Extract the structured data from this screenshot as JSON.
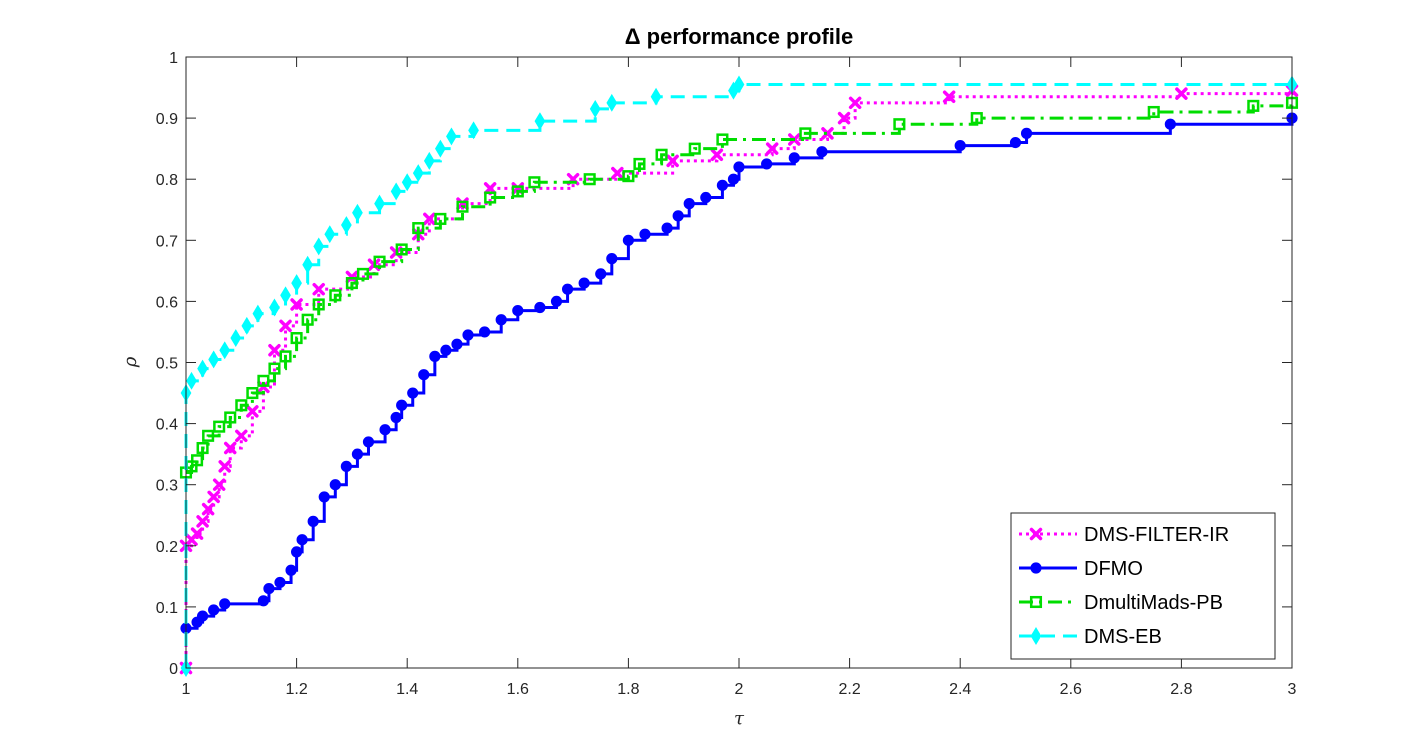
{
  "chart_data": {
    "type": "line",
    "title": "Δ performance profile",
    "xlabel": "τ",
    "ylabel": "ρ",
    "xlim": [
      1,
      3
    ],
    "ylim": [
      0,
      1
    ],
    "grid": false,
    "legend_position": "bottom-right",
    "x_ticks": [
      1,
      1.2,
      1.4,
      1.6,
      1.8,
      2,
      2.2,
      2.4,
      2.6,
      2.8,
      3
    ],
    "x_tick_labels": [
      "1",
      "1.2",
      "1.4",
      "1.6",
      "1.8",
      "2",
      "2.2",
      "2.4",
      "2.6",
      "2.8",
      "3"
    ],
    "y_ticks": [
      0,
      0.1,
      0.2,
      0.3,
      0.4,
      0.5,
      0.6,
      0.7,
      0.8,
      0.9,
      1
    ],
    "y_tick_labels": [
      "0",
      "0.1",
      "0.2",
      "0.3",
      "0.4",
      "0.5",
      "0.6",
      "0.7",
      "0.8",
      "0.9",
      "1"
    ],
    "series": [
      {
        "name": "DMS-FILTER-IR",
        "color": "#ff00ff",
        "dash": "dotted",
        "marker": "x",
        "points": [
          [
            1,
            0
          ],
          [
            1,
            0.2
          ],
          [
            1.01,
            0.21
          ],
          [
            1.02,
            0.22
          ],
          [
            1.03,
            0.24
          ],
          [
            1.04,
            0.26
          ],
          [
            1.05,
            0.28
          ],
          [
            1.06,
            0.3
          ],
          [
            1.07,
            0.33
          ],
          [
            1.08,
            0.36
          ],
          [
            1.1,
            0.38
          ],
          [
            1.12,
            0.42
          ],
          [
            1.14,
            0.46
          ],
          [
            1.16,
            0.52
          ],
          [
            1.18,
            0.56
          ],
          [
            1.2,
            0.595
          ],
          [
            1.24,
            0.62
          ],
          [
            1.3,
            0.64
          ],
          [
            1.34,
            0.66
          ],
          [
            1.38,
            0.68
          ],
          [
            1.42,
            0.71
          ],
          [
            1.44,
            0.735
          ],
          [
            1.5,
            0.76
          ],
          [
            1.55,
            0.785
          ],
          [
            1.6,
            0.785
          ],
          [
            1.7,
            0.8
          ],
          [
            1.78,
            0.81
          ],
          [
            1.88,
            0.83
          ],
          [
            1.96,
            0.84
          ],
          [
            2.06,
            0.85
          ],
          [
            2.1,
            0.865
          ],
          [
            2.16,
            0.875
          ],
          [
            2.19,
            0.9
          ],
          [
            2.21,
            0.925
          ],
          [
            2.38,
            0.935
          ],
          [
            2.8,
            0.94
          ],
          [
            3,
            0.945
          ]
        ]
      },
      {
        "name": "DFMO",
        "color": "#0000ff",
        "dash": "solid",
        "marker": "circle",
        "points": [
          [
            1,
            0.065
          ],
          [
            1.02,
            0.075
          ],
          [
            1.03,
            0.085
          ],
          [
            1.05,
            0.095
          ],
          [
            1.07,
            0.105
          ],
          [
            1.14,
            0.11
          ],
          [
            1.15,
            0.13
          ],
          [
            1.17,
            0.14
          ],
          [
            1.19,
            0.16
          ],
          [
            1.2,
            0.19
          ],
          [
            1.21,
            0.21
          ],
          [
            1.23,
            0.24
          ],
          [
            1.25,
            0.28
          ],
          [
            1.27,
            0.3
          ],
          [
            1.29,
            0.33
          ],
          [
            1.31,
            0.35
          ],
          [
            1.33,
            0.37
          ],
          [
            1.36,
            0.39
          ],
          [
            1.38,
            0.41
          ],
          [
            1.39,
            0.43
          ],
          [
            1.41,
            0.45
          ],
          [
            1.43,
            0.48
          ],
          [
            1.45,
            0.51
          ],
          [
            1.47,
            0.52
          ],
          [
            1.49,
            0.53
          ],
          [
            1.51,
            0.545
          ],
          [
            1.54,
            0.55
          ],
          [
            1.57,
            0.57
          ],
          [
            1.6,
            0.585
          ],
          [
            1.64,
            0.59
          ],
          [
            1.67,
            0.6
          ],
          [
            1.69,
            0.62
          ],
          [
            1.72,
            0.63
          ],
          [
            1.75,
            0.645
          ],
          [
            1.77,
            0.67
          ],
          [
            1.8,
            0.7
          ],
          [
            1.83,
            0.71
          ],
          [
            1.87,
            0.72
          ],
          [
            1.89,
            0.74
          ],
          [
            1.91,
            0.76
          ],
          [
            1.94,
            0.77
          ],
          [
            1.97,
            0.79
          ],
          [
            1.99,
            0.8
          ],
          [
            2,
            0.82
          ],
          [
            2.05,
            0.825
          ],
          [
            2.1,
            0.835
          ],
          [
            2.15,
            0.845
          ],
          [
            2.4,
            0.855
          ],
          [
            2.5,
            0.86
          ],
          [
            2.52,
            0.875
          ],
          [
            2.78,
            0.89
          ],
          [
            3,
            0.9
          ]
        ]
      },
      {
        "name": "DmultiMads-PB",
        "color": "#00dd00",
        "dash": "dashdot",
        "marker": "square",
        "points": [
          [
            1,
            0.32
          ],
          [
            1.01,
            0.33
          ],
          [
            1.02,
            0.34
          ],
          [
            1.03,
            0.36
          ],
          [
            1.04,
            0.38
          ],
          [
            1.06,
            0.395
          ],
          [
            1.08,
            0.41
          ],
          [
            1.1,
            0.43
          ],
          [
            1.12,
            0.45
          ],
          [
            1.14,
            0.47
          ],
          [
            1.16,
            0.49
          ],
          [
            1.18,
            0.51
          ],
          [
            1.2,
            0.54
          ],
          [
            1.22,
            0.57
          ],
          [
            1.24,
            0.595
          ],
          [
            1.27,
            0.61
          ],
          [
            1.3,
            0.63
          ],
          [
            1.32,
            0.645
          ],
          [
            1.35,
            0.665
          ],
          [
            1.39,
            0.685
          ],
          [
            1.42,
            0.72
          ],
          [
            1.46,
            0.735
          ],
          [
            1.5,
            0.755
          ],
          [
            1.55,
            0.77
          ],
          [
            1.6,
            0.78
          ],
          [
            1.63,
            0.795
          ],
          [
            1.73,
            0.8
          ],
          [
            1.8,
            0.805
          ],
          [
            1.82,
            0.825
          ],
          [
            1.86,
            0.84
          ],
          [
            1.92,
            0.85
          ],
          [
            1.97,
            0.865
          ],
          [
            2.12,
            0.875
          ],
          [
            2.29,
            0.89
          ],
          [
            2.43,
            0.9
          ],
          [
            2.75,
            0.91
          ],
          [
            2.93,
            0.92
          ],
          [
            3,
            0.925
          ]
        ]
      },
      {
        "name": "DMS-EB",
        "color": "#00ffff",
        "dash": "dashed",
        "marker": "diamond",
        "points": [
          [
            1,
            0
          ],
          [
            1,
            0.45
          ],
          [
            1.01,
            0.47
          ],
          [
            1.03,
            0.49
          ],
          [
            1.05,
            0.505
          ],
          [
            1.07,
            0.52
          ],
          [
            1.09,
            0.54
          ],
          [
            1.11,
            0.56
          ],
          [
            1.13,
            0.58
          ],
          [
            1.16,
            0.59
          ],
          [
            1.18,
            0.61
          ],
          [
            1.2,
            0.63
          ],
          [
            1.22,
            0.66
          ],
          [
            1.24,
            0.69
          ],
          [
            1.26,
            0.71
          ],
          [
            1.29,
            0.725
          ],
          [
            1.31,
            0.745
          ],
          [
            1.35,
            0.76
          ],
          [
            1.38,
            0.78
          ],
          [
            1.4,
            0.795
          ],
          [
            1.42,
            0.81
          ],
          [
            1.44,
            0.83
          ],
          [
            1.46,
            0.85
          ],
          [
            1.48,
            0.87
          ],
          [
            1.52,
            0.88
          ],
          [
            1.64,
            0.895
          ],
          [
            1.74,
            0.915
          ],
          [
            1.77,
            0.925
          ],
          [
            1.85,
            0.935
          ],
          [
            1.99,
            0.945
          ],
          [
            2,
            0.955
          ],
          [
            3,
            0.955
          ]
        ]
      }
    ]
  }
}
